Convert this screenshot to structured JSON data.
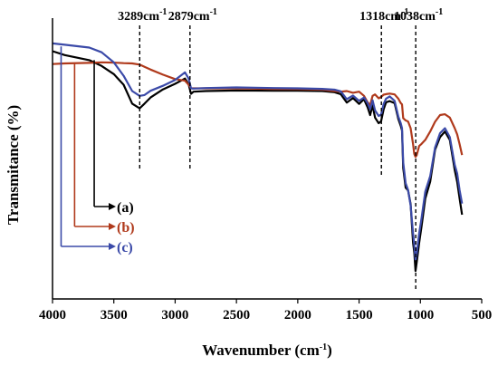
{
  "chart_data": {
    "type": "line",
    "title": "",
    "xlabel": "Wavenumber (cm",
    "xlabel_sup": "-1",
    "xlabel_tail": ")",
    "ylabel": "Transmitance (%)",
    "xlim": [
      4000,
      500
    ],
    "ylim": [
      0,
      1
    ],
    "x_reversed": true,
    "y_tick_labels": false,
    "grid": false,
    "xticks": [
      4000,
      3500,
      3000,
      2500,
      2000,
      1500,
      1000,
      500
    ],
    "xtick_labels": [
      "4000",
      "3500",
      "3000",
      "2500",
      "2000",
      "1500",
      "1000",
      "500"
    ],
    "annotations": [
      {
        "value": 3289,
        "label": "3289cm",
        "sup": "-1"
      },
      {
        "value": 2879,
        "label": "2879cm",
        "sup": "-1"
      },
      {
        "value": 1318,
        "label": "1318cm",
        "sup": "-1"
      },
      {
        "value": 1038,
        "label": "1038cm",
        "sup": "-1"
      }
    ],
    "legend": {
      "placement": "left",
      "entries": [
        {
          "label": "(a)",
          "color": "#000000",
          "x": 3660
        },
        {
          "label": "(b)",
          "color": "#b03a1c",
          "x": 3820
        },
        {
          "label": "(c)",
          "color": "#3b4aa8",
          "x": 3930
        }
      ]
    },
    "series": [
      {
        "label": "(a)",
        "color": "#000000",
        "x": [
          4000,
          3900,
          3700,
          3600,
          3500,
          3420,
          3350,
          3290,
          3250,
          3200,
          3100,
          3000,
          2920,
          2890,
          2870,
          2850,
          2750,
          2500,
          2200,
          2000,
          1800,
          1700,
          1650,
          1600,
          1550,
          1500,
          1460,
          1430,
          1410,
          1390,
          1370,
          1340,
          1320,
          1300,
          1280,
          1250,
          1210,
          1180,
          1160,
          1150,
          1140,
          1120,
          1100,
          1080,
          1060,
          1050,
          1040,
          1030,
          1010,
          990,
          960,
          920,
          880,
          840,
          800,
          760,
          720,
          700,
          680,
          660
        ],
        "y": [
          0.888,
          0.874,
          0.856,
          0.835,
          0.806,
          0.768,
          0.7,
          0.683,
          0.7,
          0.722,
          0.751,
          0.771,
          0.79,
          0.769,
          0.735,
          0.743,
          0.745,
          0.747,
          0.746,
          0.746,
          0.745,
          0.741,
          0.734,
          0.704,
          0.72,
          0.699,
          0.716,
          0.686,
          0.659,
          0.694,
          0.65,
          0.63,
          0.637,
          0.68,
          0.705,
          0.709,
          0.702,
          0.645,
          0.62,
          0.604,
          0.47,
          0.399,
          0.389,
          0.34,
          0.201,
          0.168,
          0.1,
          0.131,
          0.2,
          0.261,
          0.36,
          0.42,
          0.535,
          0.58,
          0.6,
          0.57,
          0.462,
          0.42,
          0.36,
          0.302
        ]
      },
      {
        "label": "(b)",
        "color": "#b03a1c",
        "x": [
          4000,
          3900,
          3700,
          3600,
          3500,
          3420,
          3350,
          3290,
          3250,
          3200,
          3100,
          3000,
          2920,
          2890,
          2870,
          2850,
          2750,
          2500,
          2200,
          2000,
          1800,
          1700,
          1650,
          1600,
          1550,
          1500,
          1460,
          1430,
          1410,
          1390,
          1370,
          1340,
          1320,
          1300,
          1280,
          1250,
          1210,
          1180,
          1160,
          1150,
          1140,
          1120,
          1100,
          1080,
          1060,
          1050,
          1040,
          1030,
          1010,
          990,
          960,
          920,
          880,
          840,
          800,
          760,
          720,
          700,
          680,
          660
        ],
        "y": [
          0.842,
          0.844,
          0.846,
          0.848,
          0.847,
          0.845,
          0.844,
          0.84,
          0.832,
          0.822,
          0.804,
          0.788,
          0.782,
          0.768,
          0.755,
          0.755,
          0.755,
          0.755,
          0.753,
          0.752,
          0.75,
          0.745,
          0.743,
          0.745,
          0.739,
          0.743,
          0.728,
          0.704,
          0.695,
          0.728,
          0.733,
          0.719,
          0.724,
          0.732,
          0.734,
          0.736,
          0.733,
          0.718,
          0.702,
          0.697,
          0.648,
          0.64,
          0.636,
          0.612,
          0.555,
          0.52,
          0.509,
          0.515,
          0.548,
          0.556,
          0.57,
          0.6,
          0.635,
          0.659,
          0.662,
          0.65,
          0.612,
          0.59,
          0.555,
          0.516
        ]
      },
      {
        "label": "(c)",
        "color": "#3b4aa8",
        "x": [
          4000,
          3900,
          3700,
          3600,
          3500,
          3420,
          3350,
          3290,
          3250,
          3200,
          3100,
          3000,
          2920,
          2890,
          2870,
          2850,
          2750,
          2500,
          2200,
          2000,
          1800,
          1700,
          1650,
          1600,
          1550,
          1500,
          1460,
          1430,
          1410,
          1390,
          1370,
          1340,
          1320,
          1300,
          1280,
          1250,
          1210,
          1180,
          1160,
          1150,
          1140,
          1120,
          1100,
          1080,
          1060,
          1050,
          1040,
          1030,
          1010,
          990,
          960,
          920,
          880,
          840,
          800,
          760,
          720,
          700,
          680,
          660
        ],
        "y": [
          0.916,
          0.911,
          0.901,
          0.884,
          0.848,
          0.8,
          0.745,
          0.728,
          0.731,
          0.746,
          0.764,
          0.785,
          0.812,
          0.79,
          0.755,
          0.754,
          0.756,
          0.758,
          0.756,
          0.755,
          0.753,
          0.75,
          0.744,
          0.716,
          0.729,
          0.71,
          0.722,
          0.701,
          0.68,
          0.712,
          0.676,
          0.656,
          0.661,
          0.699,
          0.718,
          0.726,
          0.71,
          0.654,
          0.63,
          0.612,
          0.49,
          0.415,
          0.39,
          0.335,
          0.235,
          0.195,
          0.14,
          0.163,
          0.234,
          0.29,
          0.385,
          0.44,
          0.543,
          0.594,
          0.612,
          0.58,
          0.481,
          0.45,
          0.39,
          0.342
        ]
      }
    ]
  }
}
